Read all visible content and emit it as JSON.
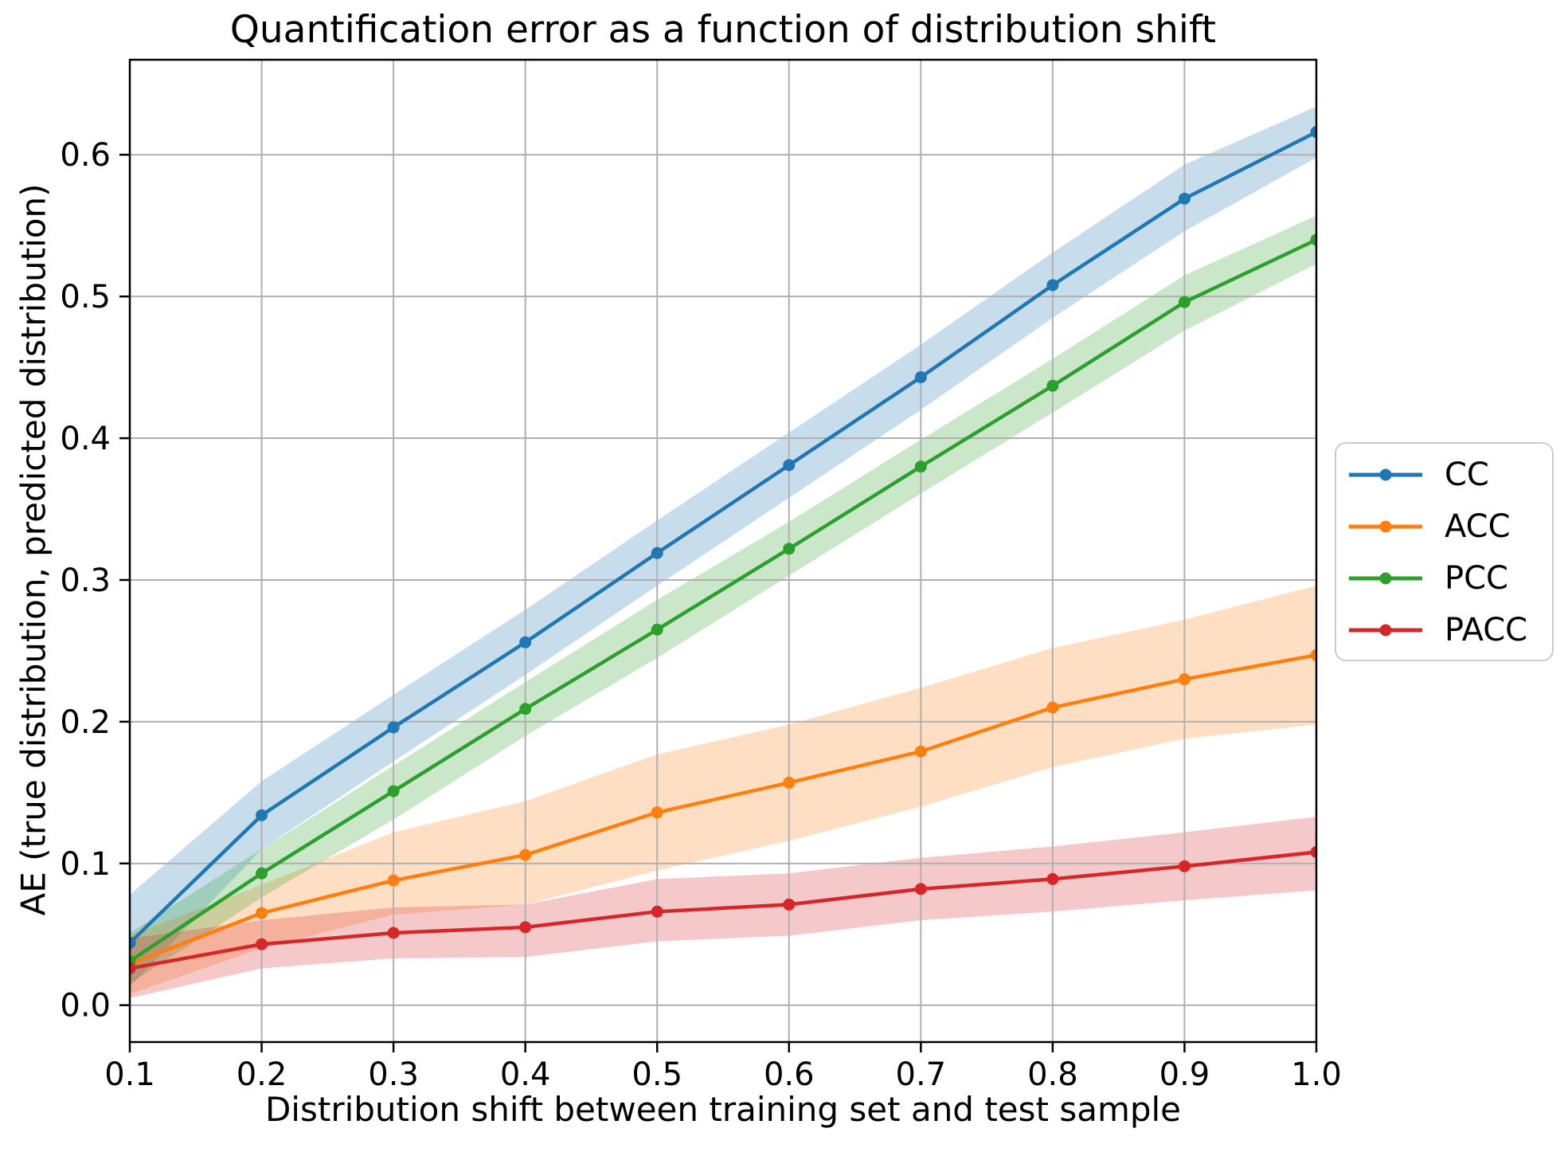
{
  "chart_data": {
    "type": "line",
    "title": "Quantification error as a function of distribution shift",
    "xlabel": "Distribution shift between training set and test sample",
    "ylabel": "AE (true distribution, predicted distribution)",
    "x": [
      0.1,
      0.2,
      0.3,
      0.4,
      0.5,
      0.6,
      0.7,
      0.8,
      0.9,
      1.0
    ],
    "x_tick_labels": [
      "0.1",
      "0.2",
      "0.3",
      "0.4",
      "0.5",
      "0.6",
      "0.7",
      "0.8",
      "0.9",
      "1.0"
    ],
    "y_ticks": [
      0.0,
      0.1,
      0.2,
      0.3,
      0.4,
      0.5,
      0.6
    ],
    "y_tick_labels": [
      "0.0",
      "0.1",
      "0.2",
      "0.3",
      "0.4",
      "0.5",
      "0.6"
    ],
    "xlim": [
      0.1,
      1.0
    ],
    "ylim": [
      -0.026,
      0.667
    ],
    "grid": true,
    "grid_color": "#b0b0b0",
    "spine_color": "#000000",
    "legend_position": "right-outside",
    "series": [
      {
        "name": "CC",
        "color": "#1f77b4",
        "values": [
          0.044,
          0.134,
          0.196,
          0.256,
          0.319,
          0.381,
          0.443,
          0.508,
          0.569,
          0.616
        ],
        "band_lower": [
          0.013,
          0.11,
          0.172,
          0.233,
          0.296,
          0.358,
          0.42,
          0.485,
          0.546,
          0.598
        ],
        "band_upper": [
          0.078,
          0.158,
          0.219,
          0.279,
          0.342,
          0.404,
          0.466,
          0.531,
          0.593,
          0.634
        ]
      },
      {
        "name": "ACC",
        "color": "#ff7f0e",
        "values": [
          0.029,
          0.065,
          0.088,
          0.106,
          0.136,
          0.157,
          0.179,
          0.21,
          0.23,
          0.247
        ],
        "band_lower": [
          0.008,
          0.04,
          0.064,
          0.071,
          0.095,
          0.116,
          0.14,
          0.168,
          0.188,
          0.198
        ],
        "band_upper": [
          0.049,
          0.085,
          0.122,
          0.144,
          0.177,
          0.198,
          0.224,
          0.252,
          0.272,
          0.296
        ]
      },
      {
        "name": "PCC",
        "color": "#2ca02c",
        "values": [
          0.031,
          0.093,
          0.151,
          0.209,
          0.265,
          0.322,
          0.38,
          0.437,
          0.496,
          0.54
        ],
        "band_lower": [
          0.015,
          0.076,
          0.131,
          0.19,
          0.245,
          0.303,
          0.361,
          0.418,
          0.476,
          0.523
        ],
        "band_upper": [
          0.051,
          0.11,
          0.169,
          0.228,
          0.286,
          0.341,
          0.399,
          0.456,
          0.515,
          0.557
        ]
      },
      {
        "name": "PACC",
        "color": "#d62728",
        "values": [
          0.026,
          0.043,
          0.051,
          0.055,
          0.066,
          0.071,
          0.082,
          0.089,
          0.098,
          0.108
        ],
        "band_lower": [
          0.005,
          0.026,
          0.033,
          0.034,
          0.045,
          0.049,
          0.06,
          0.066,
          0.074,
          0.081
        ],
        "band_upper": [
          0.047,
          0.06,
          0.069,
          0.071,
          0.089,
          0.093,
          0.104,
          0.112,
          0.122,
          0.133
        ]
      }
    ]
  }
}
